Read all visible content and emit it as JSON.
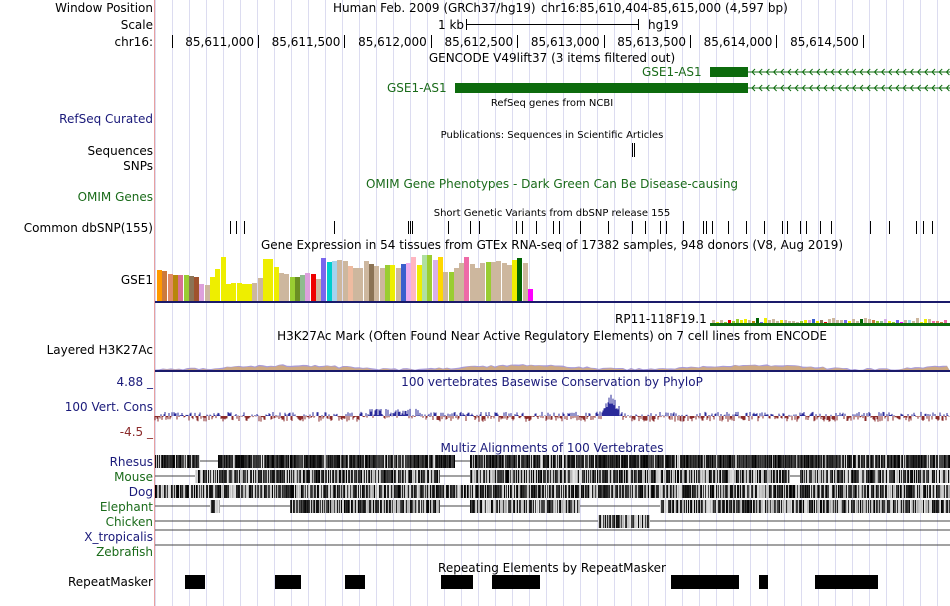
{
  "labels": {
    "window_position": "Window Position",
    "scale": "Scale",
    "chrom": "chr16:",
    "refseq": "RefSeq Curated",
    "sequences": "Sequences",
    "snps": "SNPs",
    "omim": "OMIM Genes",
    "dbsnp": "Common dbSNP(155)",
    "gse1": "GSE1",
    "h3k27ac": "Layered H3K27Ac",
    "cons_max": "4.88 _",
    "cons": "100 Vert. Cons",
    "cons_min": "-4.5 _",
    "repeat": "RepeatMasker"
  },
  "header": {
    "assembly": "Human Feb. 2009 (GRCh37/hg19)",
    "position": "chr16:85,610,404-85,615,000 (4,597 bp)",
    "scale_label": "1 kb",
    "scale_assembly": "hg19"
  },
  "ruler": [
    "85,611,000",
    "85,611,500",
    "85,612,000",
    "85,612,500",
    "85,613,000",
    "85,613,500",
    "85,614,000",
    "85,614,500"
  ],
  "tracks": {
    "gencode_title": "GENCODE V49lift37 (3 items filtered out)",
    "gene1": "GSE1-AS1",
    "gene2": "GSE1-AS1",
    "refseq_title": "RefSeq genes from NCBI",
    "pubs_title": "Publications: Sequences in Scientific Articles",
    "omim_title": "OMIM Gene Phenotypes - Dark Green Can Be Disease-causing",
    "dbsnp_title": "Short Genetic Variants from dbSNP release 155",
    "gtex_title": "Gene Expression in 54 tissues from GTEx RNA-seq of 17382 samples, 948 donors (V8, Aug 2019)",
    "gtex_gene": "RP11-118F19.1",
    "h3k_title": "H3K27Ac Mark (Often Found Near Active Regulatory Elements) on 7 cell lines from ENCODE",
    "cons_title": "100 vertebrates Basewise Conservation by PhyloP",
    "multiz_title": "Multiz Alignments of 100 Vertebrates",
    "repeat_title": "Repeating Elements by RepeatMasker"
  },
  "species": [
    "Rhesus",
    "Mouse",
    "Dog",
    "Elephant",
    "Chicken",
    "X_tropicalis",
    "Zebrafish"
  ],
  "gtex_values": [
    0.66,
    0.63,
    0.58,
    0.56,
    0.55,
    0.55,
    0.54,
    0.51,
    0.36,
    0.35,
    0.5,
    0.69,
    0.93,
    0.37,
    0.38,
    0.39,
    0.37,
    0.37,
    0.38,
    0.49,
    0.89,
    0.9,
    0.73,
    0.6,
    0.58,
    0.5,
    0.52,
    0.56,
    0.6,
    0.58,
    0.46,
    0.91,
    0.83,
    0.85,
    0.88,
    0.85,
    0.75,
    0.71,
    0.7,
    0.85,
    0.79,
    0.74,
    0.7,
    0.77,
    0.76,
    0.7,
    0.79,
    0.8,
    0.93,
    0.76,
    0.97,
    0.97,
    0.87,
    0.94,
    0.62,
    0.62,
    0.71,
    0.8,
    0.94,
    0.79,
    0.71,
    0.81,
    0.84,
    0.84,
    0.85,
    0.8,
    0.76,
    0.88,
    0.92,
    0.8,
    0.25
  ],
  "colors": {
    "gene": "#0d6b0d",
    "navy": "#1a1a7a",
    "cons_pos": "#2a2a9a",
    "cons_neg": "#8a2a2a"
  }
}
